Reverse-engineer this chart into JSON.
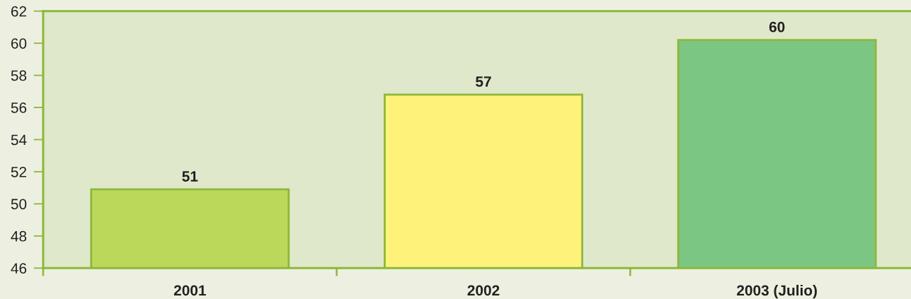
{
  "chart_data": {
    "type": "bar",
    "categories": [
      "2001",
      "2002",
      "2003 (Julio)"
    ],
    "values": [
      50.9,
      56.8,
      60.2
    ],
    "colors": [
      "#bcd85a",
      "#fff27a",
      "#7cc684"
    ],
    "value_labels": [
      "51",
      "57",
      "60"
    ],
    "ylim": [
      46,
      62
    ],
    "yticks": [
      46,
      48,
      50,
      52,
      54,
      56,
      58,
      60,
      62
    ]
  }
}
